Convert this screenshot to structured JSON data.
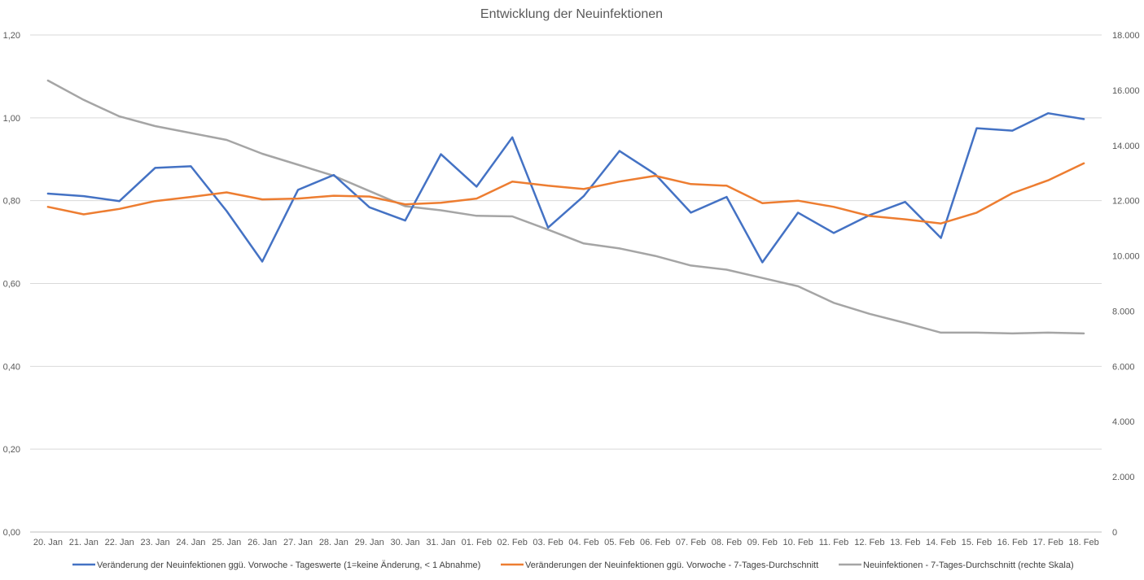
{
  "chart_data": {
    "type": "line",
    "title": "Entwicklung der Neuinfektionen",
    "categories": [
      "20. Jan",
      "21. Jan",
      "22. Jan",
      "23. Jan",
      "24. Jan",
      "25. Jan",
      "26. Jan",
      "27. Jan",
      "28. Jan",
      "29. Jan",
      "30. Jan",
      "31. Jan",
      "01. Feb",
      "02. Feb",
      "03. Feb",
      "04. Feb",
      "05. Feb",
      "06. Feb",
      "07. Feb",
      "08. Feb",
      "09. Feb",
      "10. Feb",
      "11. Feb",
      "12. Feb",
      "13. Feb",
      "14. Feb",
      "15. Feb",
      "16. Feb",
      "17. Feb",
      "18. Feb"
    ],
    "y_left": {
      "ylim": [
        0,
        1.2
      ],
      "ticks": [
        "0,00",
        "0,20",
        "0,40",
        "0,60",
        "0,80",
        "1,00",
        "1,20"
      ]
    },
    "y_right": {
      "ylim": [
        0,
        18000
      ],
      "ticks": [
        "0",
        "2.000",
        "4.000",
        "6.000",
        "8.000",
        "10.000",
        "12.000",
        "14.000",
        "16.000",
        "18.000"
      ]
    },
    "grid": true,
    "legend_position": "bottom",
    "series": [
      {
        "name": "Veränderung der Neuinfektionen ggü. Vorwoche - Tageswerte (1=keine Änderung, < 1 Abnahme)",
        "axis": "left",
        "color": "#4472C4",
        "values": [
          0.817,
          0.811,
          0.799,
          0.879,
          0.883,
          0.775,
          0.653,
          0.826,
          0.862,
          0.784,
          0.752,
          0.912,
          0.834,
          0.953,
          0.735,
          0.811,
          0.92,
          0.864,
          0.771,
          0.809,
          0.651,
          0.771,
          0.722,
          0.765,
          0.797,
          0.71,
          0.975,
          0.969,
          1.011,
          0.997
        ]
      },
      {
        "name": "Veränderungen der Neuinfektionen ggü. Vorwoche - 7-Tages-Durchschnitt",
        "axis": "left",
        "color": "#ED7D31",
        "values": [
          0.785,
          0.767,
          0.78,
          0.799,
          0.809,
          0.82,
          0.803,
          0.805,
          0.812,
          0.81,
          0.791,
          0.795,
          0.805,
          0.846,
          0.836,
          0.828,
          0.846,
          0.86,
          0.84,
          0.836,
          0.794,
          0.8,
          0.785,
          0.763,
          0.755,
          0.745,
          0.771,
          0.818,
          0.849,
          0.89
        ]
      },
      {
        "name": "Neuinfektionen - 7-Tages-Durchschnitt (rechte Skala)",
        "axis": "right",
        "color": "#A5A5A5",
        "values": [
          16350,
          15650,
          15050,
          14700,
          14450,
          14200,
          13700,
          13300,
          12900,
          12350,
          11800,
          11650,
          11450,
          11430,
          10950,
          10450,
          10270,
          10000,
          9650,
          9500,
          9200,
          8900,
          8300,
          7900,
          7570,
          7220,
          7220,
          7190,
          7220,
          7190
        ]
      }
    ]
  }
}
